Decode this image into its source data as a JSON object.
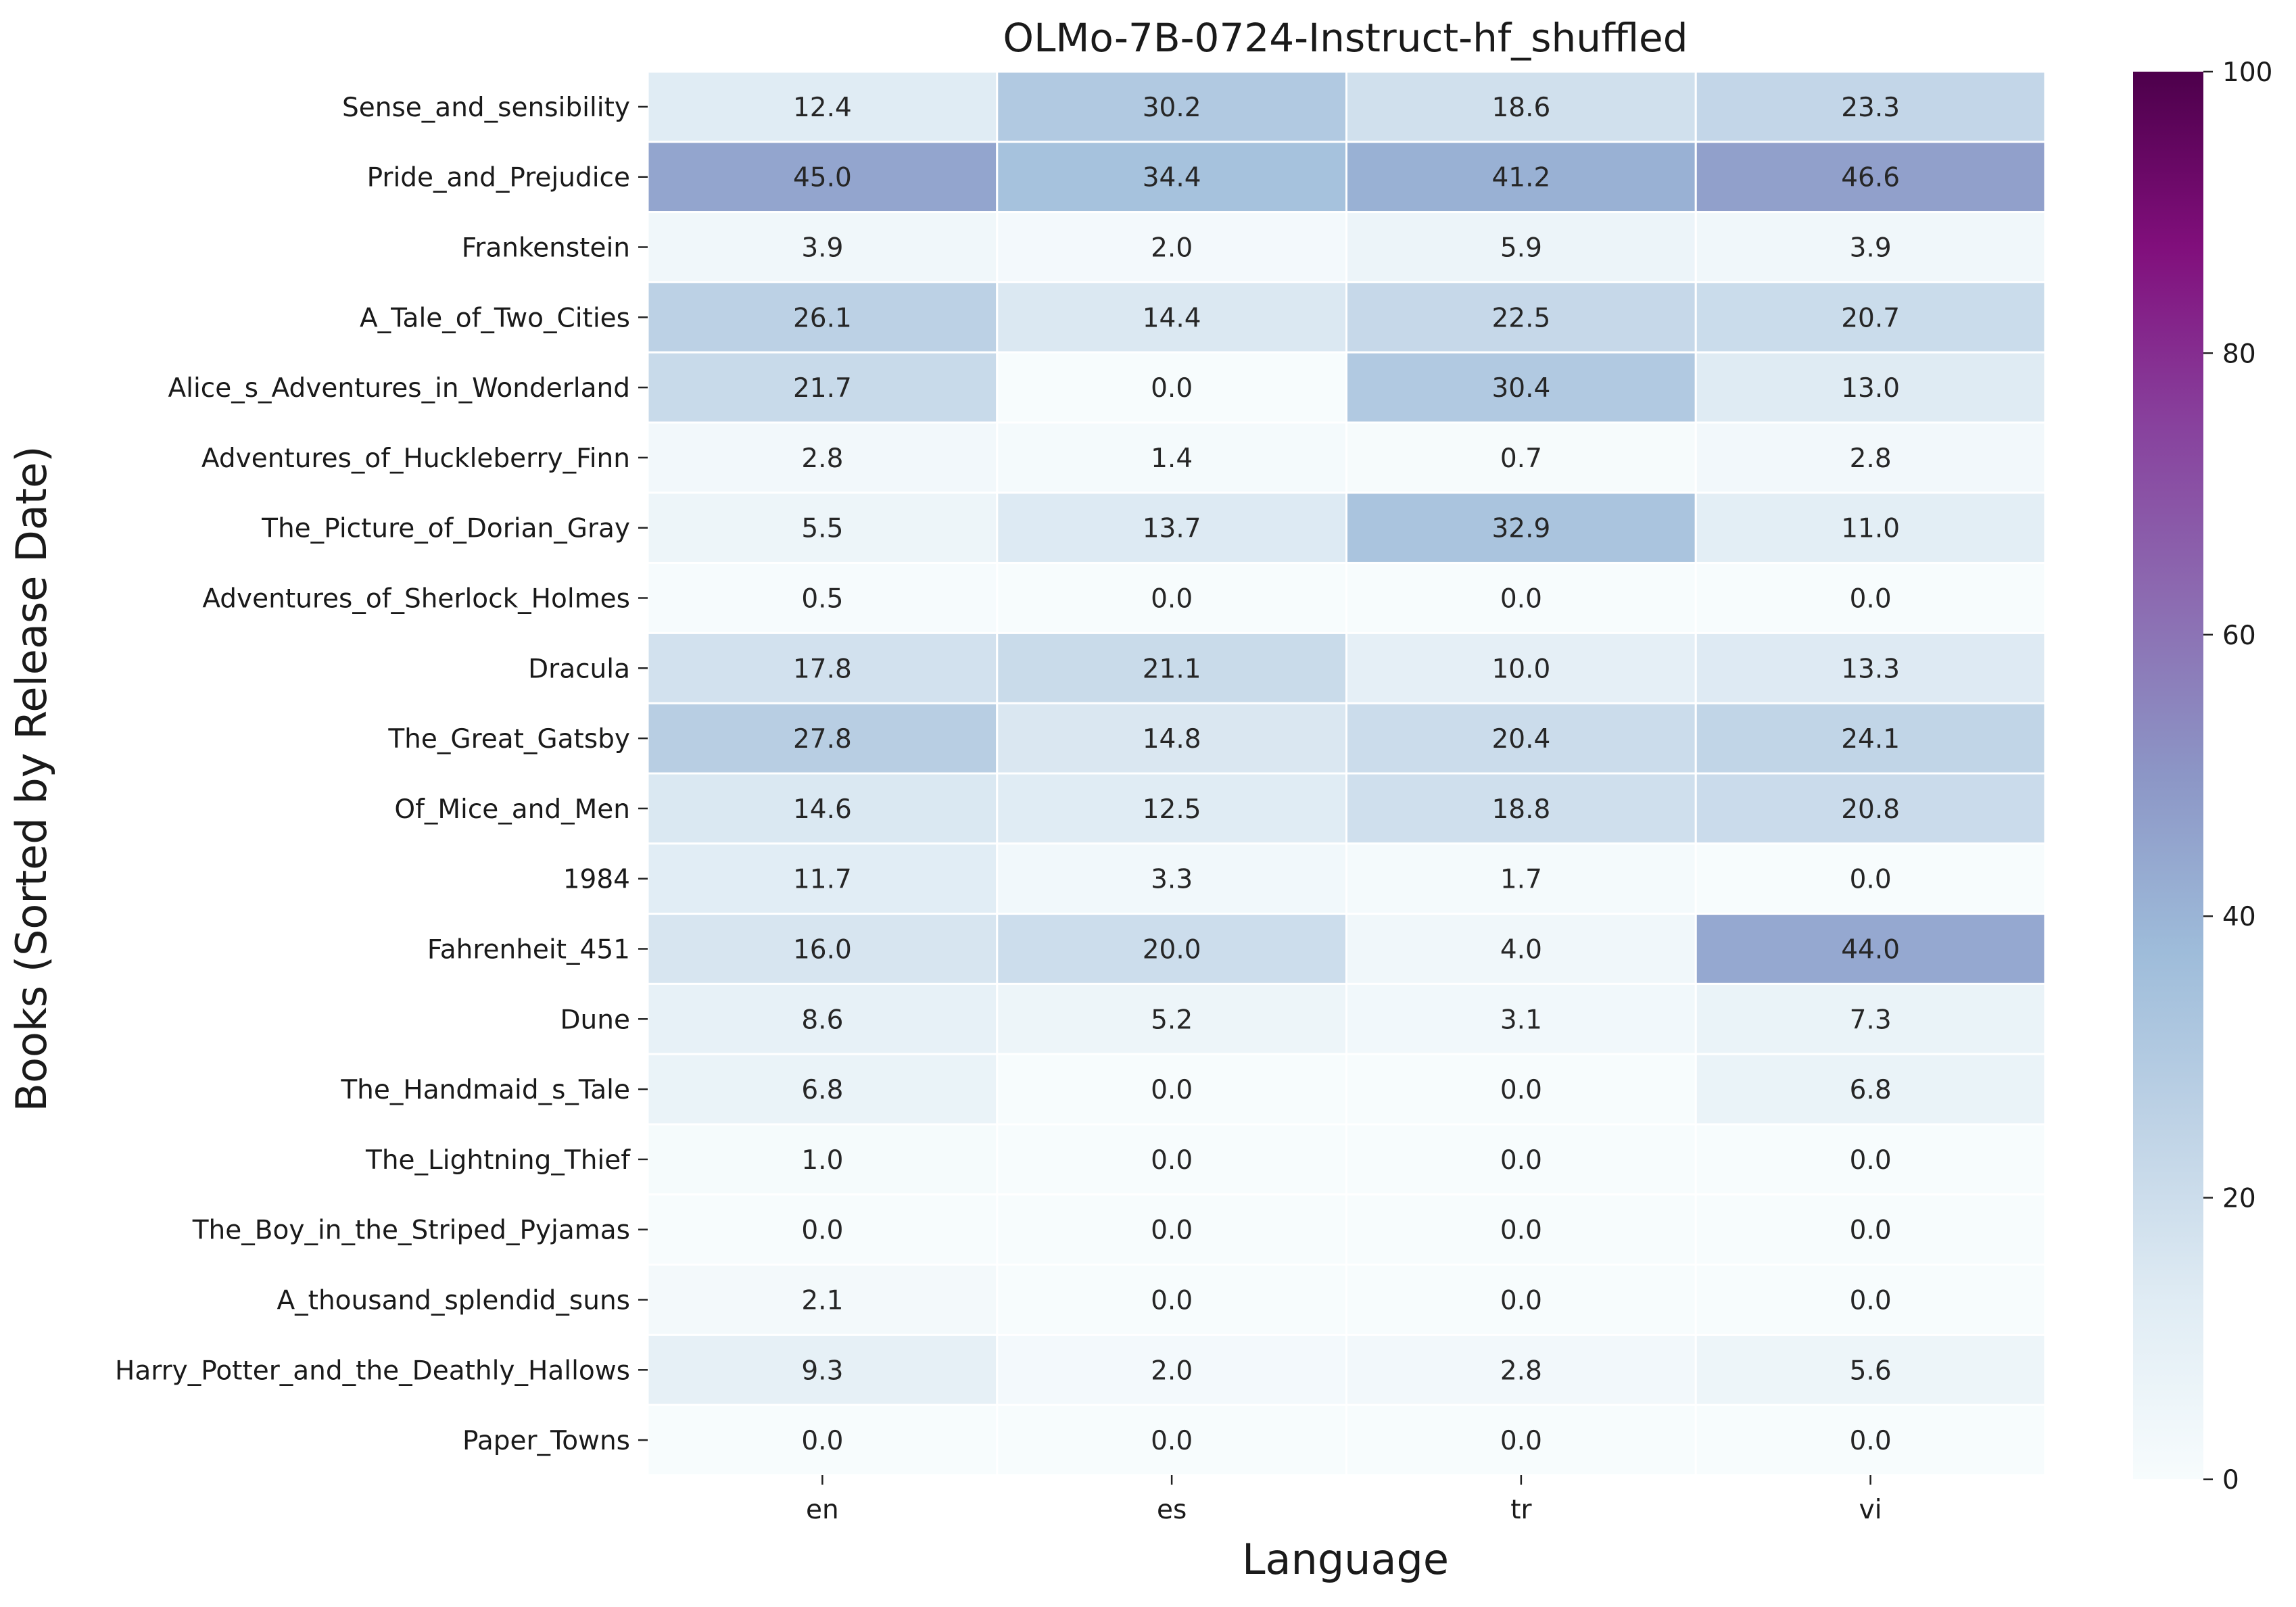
{
  "chart_data": {
    "type": "heatmap",
    "title": "OLMo-7B-0724-Instruct-hf_shuffled",
    "xlabel": "Language",
    "ylabel": "Books (Sorted by Release Date)",
    "x_categories": [
      "en",
      "es",
      "tr",
      "vi"
    ],
    "y_categories": [
      "Sense_and_sensibility",
      "Pride_and_Prejudice",
      "Frankenstein",
      "A_Tale_of_Two_Cities",
      "Alice_s_Adventures_in_Wonderland",
      "Adventures_of_Huckleberry_Finn",
      "The_Picture_of_Dorian_Gray",
      "Adventures_of_Sherlock_Holmes",
      "Dracula",
      "The_Great_Gatsby",
      "Of_Mice_and_Men",
      "1984",
      "Fahrenheit_451",
      "Dune",
      "The_Handmaid_s_Tale",
      "The_Lightning_Thief",
      "The_Boy_in_the_Striped_Pyjamas",
      "A_thousand_splendid_suns",
      "Harry_Potter_and_the_Deathly_Hallows",
      "Paper_Towns"
    ],
    "values": [
      [
        12.4,
        30.2,
        18.6,
        23.3
      ],
      [
        45.0,
        34.4,
        41.2,
        46.6
      ],
      [
        3.9,
        2.0,
        5.9,
        3.9
      ],
      [
        26.1,
        14.4,
        22.5,
        20.7
      ],
      [
        21.7,
        0.0,
        30.4,
        13.0
      ],
      [
        2.8,
        1.4,
        0.7,
        2.8
      ],
      [
        5.5,
        13.7,
        32.9,
        11.0
      ],
      [
        0.5,
        0.0,
        0.0,
        0.0
      ],
      [
        17.8,
        21.1,
        10.0,
        13.3
      ],
      [
        27.8,
        14.8,
        20.4,
        24.1
      ],
      [
        14.6,
        12.5,
        18.8,
        20.8
      ],
      [
        11.7,
        3.3,
        1.7,
        0.0
      ],
      [
        16.0,
        20.0,
        4.0,
        44.0
      ],
      [
        8.6,
        5.2,
        3.1,
        7.3
      ],
      [
        6.8,
        0.0,
        0.0,
        6.8
      ],
      [
        1.0,
        0.0,
        0.0,
        0.0
      ],
      [
        0.0,
        0.0,
        0.0,
        0.0
      ],
      [
        2.1,
        0.0,
        0.0,
        0.0
      ],
      [
        9.3,
        2.0,
        2.8,
        5.6
      ],
      [
        0.0,
        0.0,
        0.0,
        0.0
      ]
    ],
    "value_range": [
      0,
      100
    ],
    "colormap": "BuPu",
    "colorbar_ticks": [
      "0",
      "20",
      "40",
      "60",
      "80",
      "100"
    ],
    "colorbar_tick_values": [
      0,
      20,
      40,
      60,
      80,
      100
    ],
    "annotation_format": "0.1f",
    "grid": false,
    "legend": "colorbar-right"
  }
}
